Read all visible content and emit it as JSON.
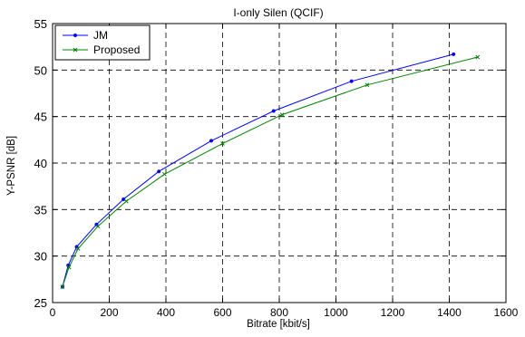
{
  "chart_data": {
    "type": "line",
    "title": "I-only Silen (QCIF)",
    "xlabel": "Bitrate [kbit/s]",
    "ylabel": "Y-PSNR [dB]",
    "xlim": [
      0,
      1600
    ],
    "ylim": [
      25,
      55
    ],
    "xticks": [
      0,
      200,
      400,
      600,
      800,
      1000,
      1200,
      1400,
      1600
    ],
    "yticks": [
      25,
      30,
      35,
      40,
      45,
      50,
      55
    ],
    "grid": true,
    "grid_style": "dashed",
    "legend_position": "top-left",
    "series": [
      {
        "name": "JM",
        "color": "#0000ff",
        "marker": "point",
        "x": [
          35,
          55,
          85,
          155,
          250,
          375,
          560,
          780,
          1055,
          1415
        ],
        "y": [
          26.7,
          29.0,
          31.0,
          33.4,
          36.1,
          39.1,
          42.4,
          45.6,
          48.8,
          51.7
        ]
      },
      {
        "name": "Proposed",
        "color": "#008000",
        "marker": "x",
        "x": [
          35,
          58,
          90,
          160,
          260,
          395,
          600,
          810,
          1110,
          1500
        ],
        "y": [
          26.7,
          28.8,
          30.8,
          33.2,
          35.9,
          38.8,
          42.1,
          45.2,
          48.4,
          51.4
        ]
      }
    ]
  }
}
